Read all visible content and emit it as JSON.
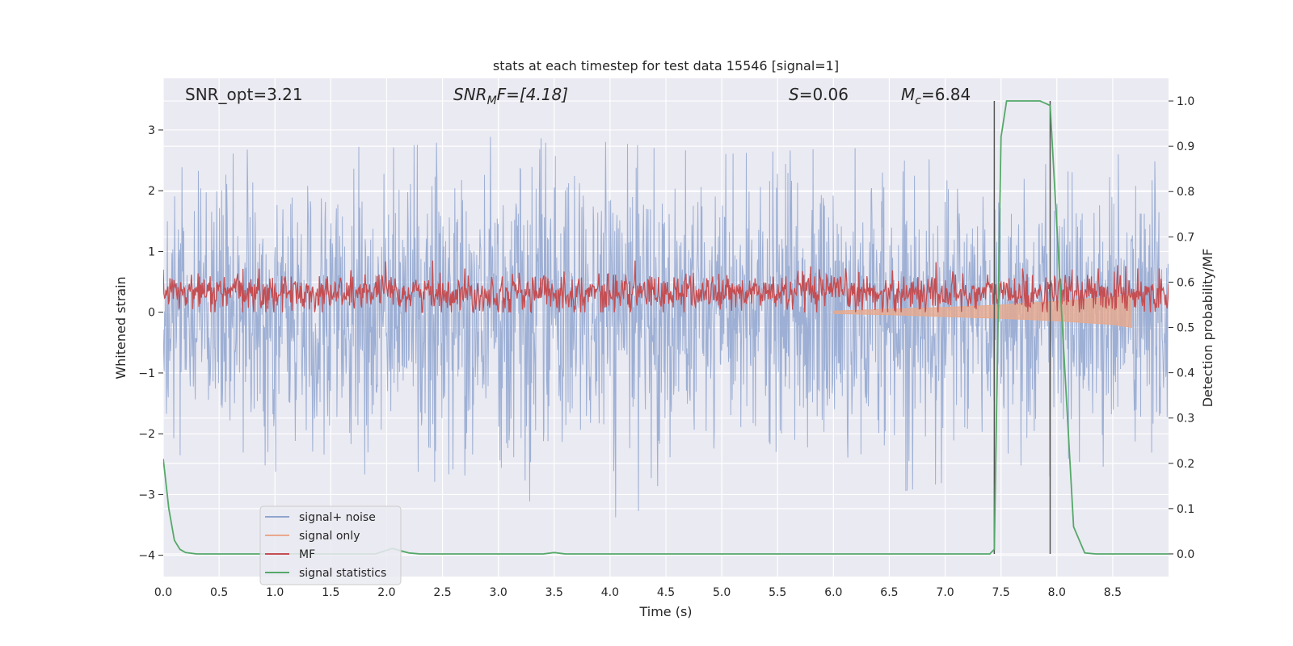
{
  "chart_data": {
    "type": "line",
    "title": "stats at each timestep for test data 15546 [signal=1]",
    "xlabel": "Time (s)",
    "ylabel": "Whitened strain",
    "ylabel_right": "Detection probability/MF",
    "xlim": [
      0,
      9.0
    ],
    "ylim": [
      -4.35,
      3.85
    ],
    "ylim_right": [
      -0.05,
      1.05
    ],
    "x_ticks": [
      0.0,
      0.5,
      1.0,
      1.5,
      2.0,
      2.5,
      3.0,
      3.5,
      4.0,
      4.5,
      5.0,
      5.5,
      6.0,
      6.5,
      7.0,
      7.5,
      8.0,
      8.5
    ],
    "x_tick_labels": [
      "0.0",
      "0.5",
      "1.0",
      "1.5",
      "2.0",
      "2.5",
      "3.0",
      "3.5",
      "4.0",
      "4.5",
      "5.0",
      "5.5",
      "6.0",
      "6.5",
      "7.0",
      "7.5",
      "8.0",
      "8.5"
    ],
    "y_ticks": [
      -4,
      -3,
      -2,
      -1,
      0,
      1,
      2,
      3
    ],
    "y_tick_labels": [
      "−4",
      "−3",
      "−2",
      "−1",
      "0",
      "1",
      "2",
      "3"
    ],
    "y_right_ticks": [
      0.0,
      0.1,
      0.2,
      0.3,
      0.4,
      0.5,
      0.6,
      0.7,
      0.8,
      0.9,
      1.0
    ],
    "y_right_tick_labels": [
      "0.0",
      "0.1",
      "0.2",
      "0.3",
      "0.4",
      "0.5",
      "0.6",
      "0.7",
      "0.8",
      "0.9",
      "1.0"
    ],
    "grid": true,
    "legend_position": "lower-left",
    "annotations": [
      "SNR_opt=3.21",
      "SNR",
      "M",
      "F=[4.18]",
      "S",
      "=0.06",
      "M",
      "c",
      "=6.84"
    ],
    "vertical_lines_x": [
      7.44,
      7.94
    ],
    "series": [
      {
        "name": "signal+ noise",
        "color": "#8fa5cf",
        "axis": "left",
        "style": "noise band, amplitude roughly within -3.6 to 3.5",
        "envelope_x": [
          0.0,
          1.0,
          2.0,
          3.0,
          4.0,
          5.0,
          6.0,
          7.0,
          8.0,
          9.0
        ],
        "envelope_upper": [
          2.3,
          2.8,
          2.7,
          2.9,
          2.8,
          2.6,
          2.7,
          2.7,
          2.6,
          2.6
        ],
        "envelope_lower": [
          -2.4,
          -2.9,
          -2.8,
          -3.0,
          -3.4,
          -2.9,
          -3.2,
          -2.8,
          -2.7,
          -2.6
        ]
      },
      {
        "name": "signal only",
        "color": "#e8a98c",
        "axis": "left",
        "x": [
          6.0,
          6.5,
          7.0,
          7.5,
          8.0,
          8.5,
          8.67
        ],
        "upper": [
          0.02,
          0.05,
          0.08,
          0.12,
          0.18,
          0.25,
          0.3
        ],
        "lower": [
          -0.02,
          -0.04,
          -0.07,
          -0.1,
          -0.14,
          -0.2,
          -0.25
        ]
      },
      {
        "name": "MF",
        "color": "#c44e52",
        "axis": "left",
        "style": "noisy band between about 0.0 and 0.8"
      },
      {
        "name": "signal statistics",
        "color": "#55a868",
        "axis": "right",
        "x": [
          0.0,
          0.05,
          0.1,
          0.15,
          0.2,
          0.3,
          1.0,
          1.9,
          2.05,
          2.2,
          2.3,
          3.4,
          3.5,
          3.6,
          7.4,
          7.44,
          7.5,
          7.55,
          7.6,
          7.85,
          7.94,
          8.05,
          8.15,
          8.25,
          8.35,
          9.0
        ],
        "y": [
          0.21,
          0.1,
          0.03,
          0.01,
          0.003,
          0.0,
          0.0,
          0.0,
          0.012,
          0.002,
          0.0,
          0.0,
          0.003,
          0.0,
          0.0,
          0.01,
          0.92,
          1.0,
          1.0,
          1.0,
          0.99,
          0.5,
          0.06,
          0.002,
          0.0,
          0.0
        ]
      }
    ]
  }
}
